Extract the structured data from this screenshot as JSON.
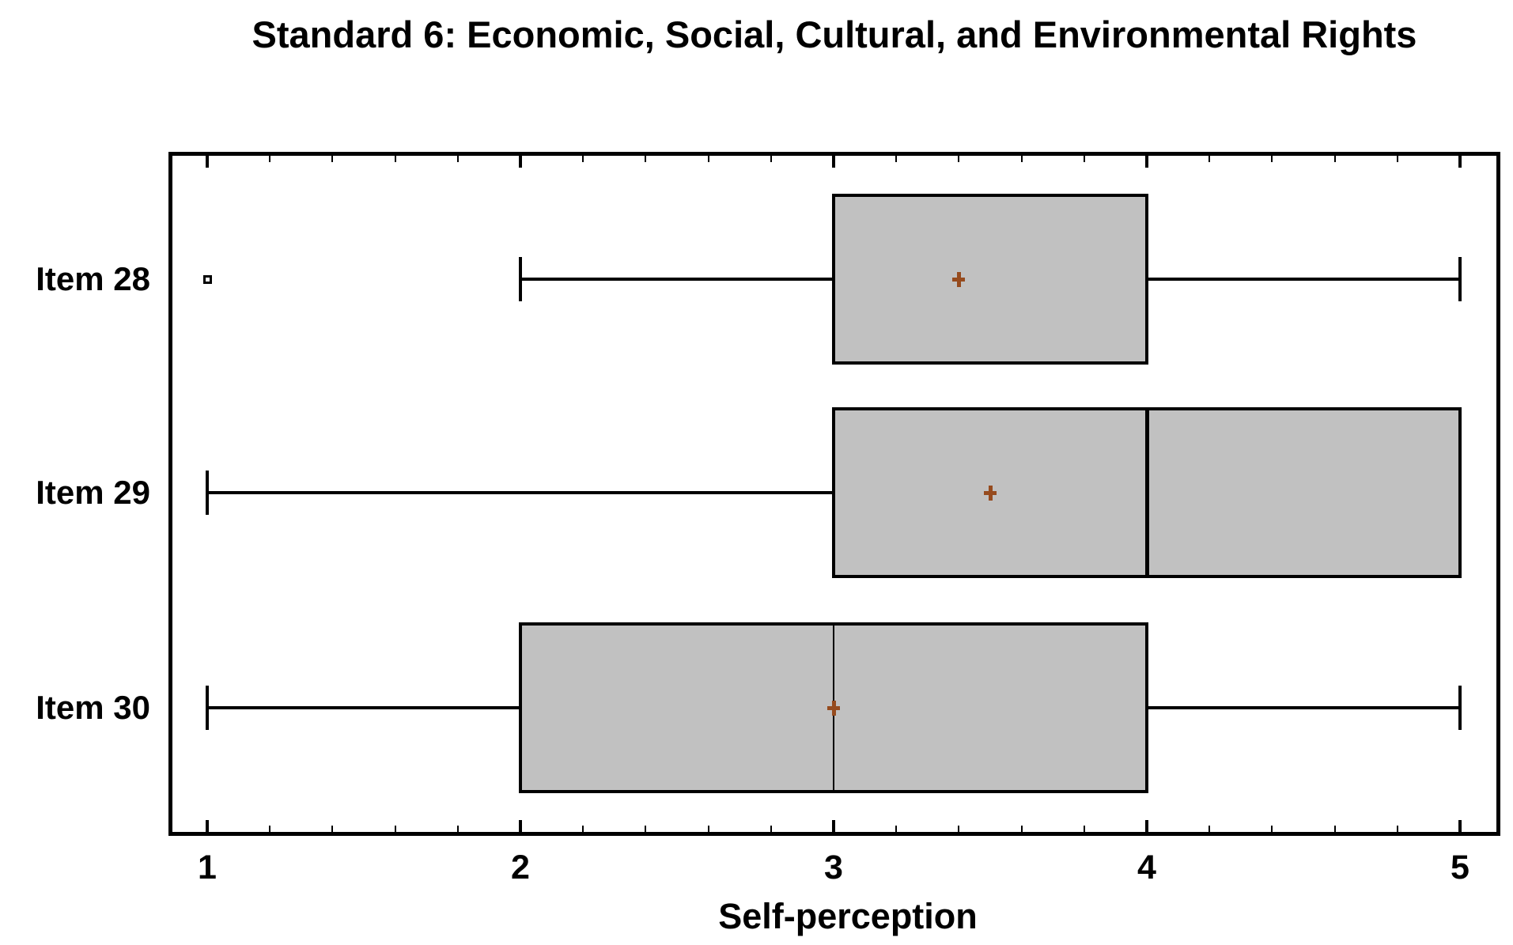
{
  "chart_data": {
    "type": "boxplot",
    "orientation": "horizontal",
    "title": "Standard 6: Economic, Social, Cultural, and Environmental Rights",
    "xlabel": "Self-perception",
    "x_axis": {
      "range": [
        1,
        5
      ],
      "ticks": [
        1,
        2,
        3,
        4,
        5
      ],
      "tick_labels": [
        "1",
        "2",
        "3",
        "4",
        "5"
      ],
      "minor_tick_step": 0.2,
      "grid": false
    },
    "items": [
      {
        "label": "Item 28",
        "whisker_low": 2,
        "q1": 3,
        "median": null,
        "q3": 4,
        "whisker_high": 5,
        "mean": 3.4,
        "outliers": [
          1
        ]
      },
      {
        "label": "Item 29",
        "whisker_low": 1,
        "q1": 3,
        "median": 4,
        "q3": 5,
        "whisker_high": 5,
        "mean": 3.5,
        "outliers": []
      },
      {
        "label": "Item 30",
        "whisker_low": 1,
        "q1": 2,
        "median": 3,
        "q3": 4,
        "whisker_high": 5,
        "mean": 3.0,
        "outliers": []
      }
    ],
    "colors": {
      "box_fill": "#C1C1C1",
      "line": "#000000",
      "mean_marker": "#964B1E",
      "background": "#FFFFFF"
    },
    "legend": null
  }
}
